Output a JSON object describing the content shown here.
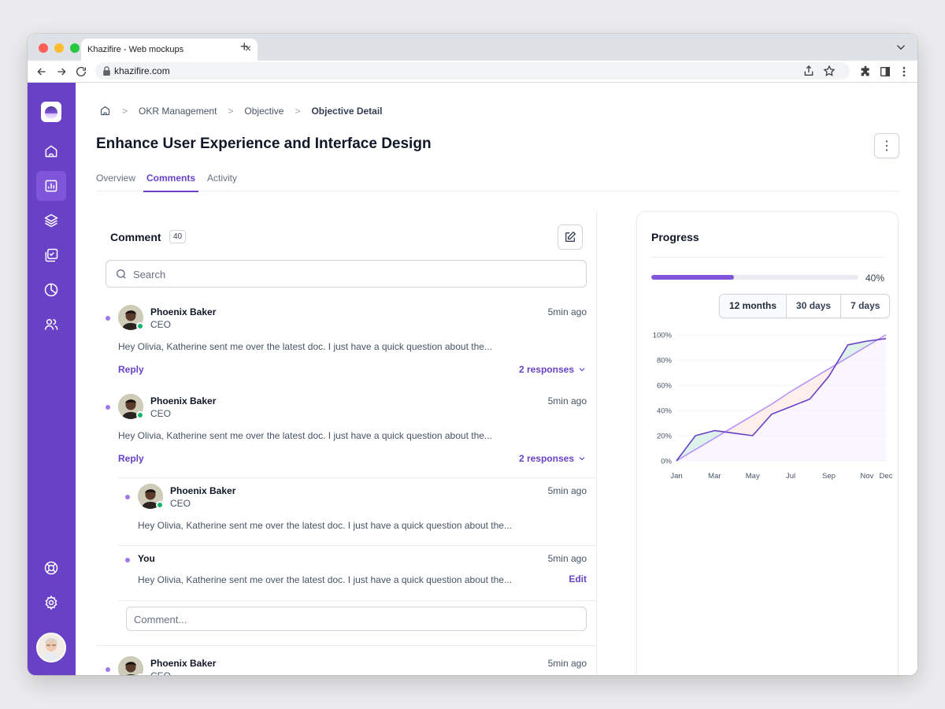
{
  "browser": {
    "tab_title": "Khazifire - Web mockups",
    "tab_close": "×",
    "new_tab": "+",
    "url": "khazifire.com"
  },
  "sidebar": {
    "items": [
      {
        "icon": "home-icon",
        "active": false
      },
      {
        "icon": "bar-chart-icon",
        "active": true
      },
      {
        "icon": "layers-icon",
        "active": false
      },
      {
        "icon": "check-square-icon",
        "active": false
      },
      {
        "icon": "pie-chart-icon",
        "active": false
      },
      {
        "icon": "users-icon",
        "active": false
      }
    ],
    "bottom_items": [
      {
        "icon": "life-buoy-icon"
      },
      {
        "icon": "settings-icon"
      }
    ]
  },
  "breadcrumb": {
    "sep": ">",
    "items": [
      "OKR Management",
      "Objective",
      "Objective Detail"
    ]
  },
  "page": {
    "title": "Enhance User Experience and Interface Design",
    "more_glyph": "⋮"
  },
  "tabs": [
    "Overview",
    "Comments",
    "Activity"
  ],
  "comments": {
    "heading": "Comment",
    "count": "40",
    "search_placeholder": "Search",
    "input_placeholder": "Comment...",
    "items": [
      {
        "name": "Phoenix Baker",
        "role": "CEO",
        "time": "5min ago",
        "text": "Hey Olivia, Katherine sent me over the latest doc. I just have a quick question about the...",
        "reply": "Reply",
        "responses": "2 responses"
      },
      {
        "name": "Phoenix Baker",
        "role": "CEO",
        "time": "5min ago",
        "text": "Hey Olivia, Katherine sent me over the latest doc. I just have a quick question about the...",
        "reply": "Reply",
        "responses": "2 responses"
      }
    ],
    "replies": [
      {
        "name": "Phoenix Baker",
        "role": "CEO",
        "time": "5min ago",
        "text": "Hey Olivia, Katherine sent me over the latest doc. I just have a quick question about the..."
      },
      {
        "name": "You",
        "time": "5min ago",
        "text": "Hey Olivia, Katherine sent me over the latest doc. I just have a quick question about the...",
        "edit": "Edit"
      }
    ],
    "last": {
      "name": "Phoenix Baker",
      "role": "CEO",
      "time": "5min ago"
    }
  },
  "progress": {
    "title": "Progress",
    "value": 0.4,
    "label": "40%",
    "ranges": [
      "12 months",
      "30 days",
      "7 days"
    ],
    "active_range": "12 months"
  },
  "colors": {
    "brand": "#6941c6",
    "brand_light": "#9e77ed",
    "online": "#12b76a"
  },
  "chart_data": {
    "type": "line",
    "x": [
      "Jan",
      "Feb",
      "Mar",
      "Apr",
      "May",
      "Jun",
      "Jul",
      "Aug",
      "Sep",
      "Oct",
      "Nov",
      "Dec"
    ],
    "tick_labels_x": [
      "Jan",
      "Mar",
      "May",
      "Jul",
      "Sep",
      "Nov",
      "Dec"
    ],
    "y_ticks": [
      "0%",
      "20%",
      "40%",
      "60%",
      "80%",
      "100%"
    ],
    "ylim": [
      0,
      100
    ],
    "grid": true,
    "legend": "none",
    "series": [
      {
        "values": [
          0,
          20,
          24,
          22,
          20,
          37,
          43,
          49,
          67,
          92,
          95,
          97
        ]
      },
      {
        "values": [
          0,
          9,
          18,
          27,
          36,
          45,
          55,
          64,
          73,
          82,
          91,
          100
        ]
      }
    ]
  }
}
